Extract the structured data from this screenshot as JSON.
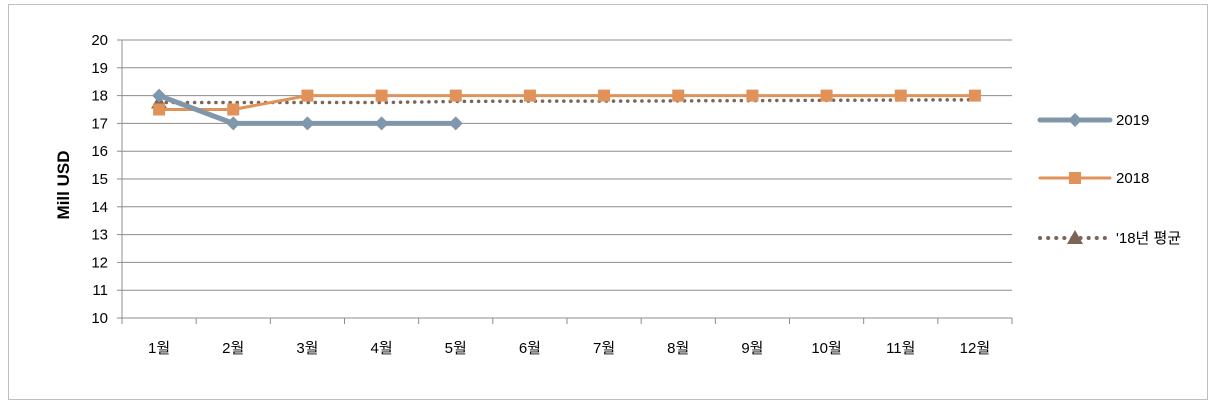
{
  "chart_data": {
    "type": "line",
    "title": "",
    "xlabel": "",
    "ylabel": "Mill USD",
    "ylim": [
      10,
      20
    ],
    "yticks": [
      10,
      11,
      12,
      13,
      14,
      15,
      16,
      17,
      18,
      19,
      20
    ],
    "categories": [
      "1월",
      "2월",
      "3월",
      "4월",
      "5월",
      "6월",
      "7월",
      "8월",
      "9월",
      "10월",
      "11월",
      "12월"
    ],
    "grid": "horizontal",
    "legend_position": "right",
    "series": [
      {
        "name": "2019",
        "color": "#7f96ab",
        "marker": "diamond",
        "line_style": "solid",
        "values": [
          18,
          17,
          17,
          17,
          17,
          null,
          null,
          null,
          null,
          null,
          null,
          null
        ]
      },
      {
        "name": "2018",
        "color": "#e0925a",
        "marker": "square",
        "line_style": "solid",
        "values": [
          17.5,
          17.5,
          18,
          18,
          18,
          18,
          18,
          18,
          18,
          18,
          18,
          18
        ]
      },
      {
        "name": "'18년 평균",
        "color": "#7b6558",
        "marker": "triangle",
        "line_style": "dotted",
        "values": [
          17.75,
          17.75,
          17.75,
          17.75,
          17.79,
          17.8,
          17.8,
          17.81,
          17.82,
          17.83,
          17.84,
          17.85
        ]
      }
    ]
  }
}
